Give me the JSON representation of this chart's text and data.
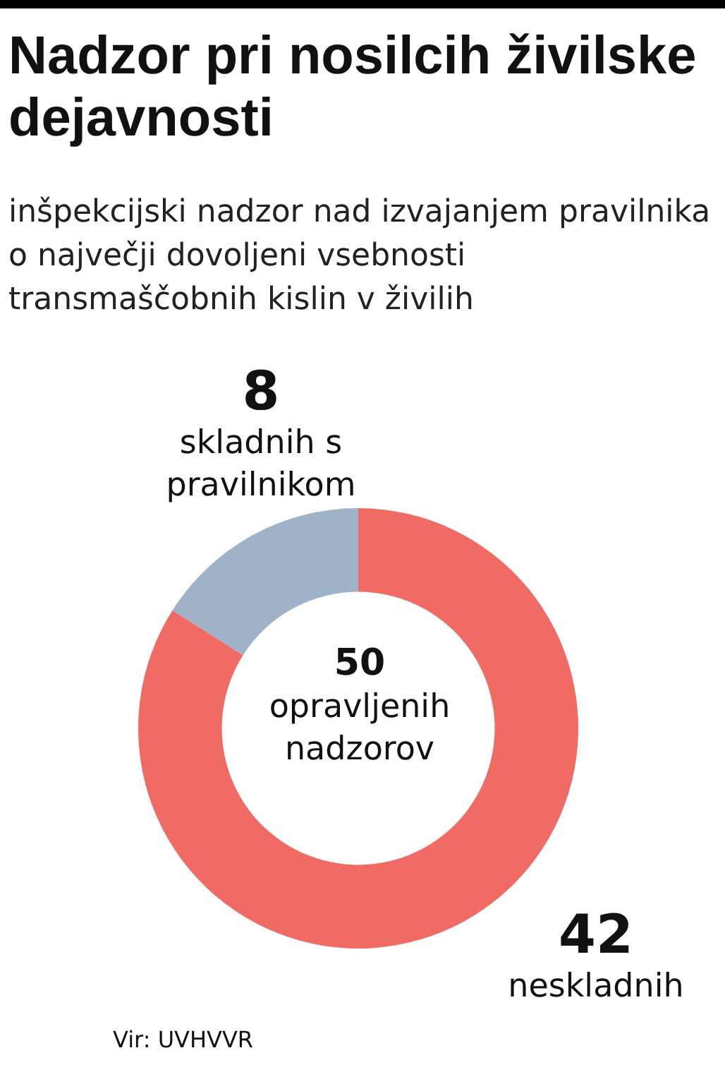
{
  "chart_data": {
    "type": "donut",
    "title": "Nadzor pri nosilcih živilske dejavnosti",
    "subtitle": "inšpekcijski nadzor nad izvajanjem pravilnika o največji dovoljeni vsebnosti transmaščobnih kislin v živilih",
    "categories": [
      "neskladnih",
      "skladnih s pravilnikom"
    ],
    "values": [
      42,
      8
    ],
    "colors": [
      "#f06b63",
      "#9fb3c8"
    ],
    "data_labels": true,
    "legend": false,
    "annotations": [
      "50 opravljenih nadzorov",
      "Vir: UVHVVR"
    ]
  }
}
